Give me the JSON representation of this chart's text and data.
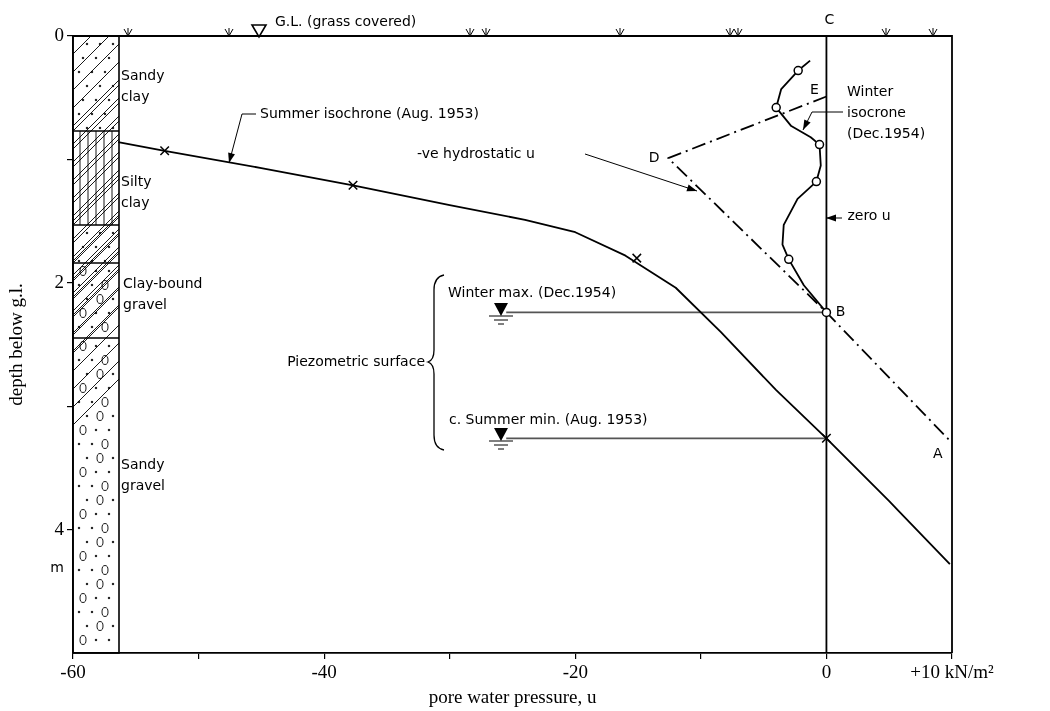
{
  "chart_data": {
    "type": "line",
    "xlabel": "pore water pressure, u",
    "ylabel": "depth below g.l.",
    "xlim": [
      -60,
      10
    ],
    "ylim": [
      5,
      0
    ],
    "xticks": [
      -60,
      {
        "value": -50,
        "label": null
      },
      -40,
      {
        "value": -30,
        "label": null
      },
      -20,
      {
        "value": -10,
        "label": null
      },
      0,
      {
        "value": 10,
        "label": "+10 kN/m²"
      }
    ],
    "yticks": [
      0,
      {
        "value": 1,
        "label": null
      },
      2,
      {
        "value": 3,
        "label": null
      },
      4
    ],
    "series": [
      {
        "name": "Summer isochrone (Aug. 1953)",
        "color": "#000000",
        "x": [
          -56.4,
          -52.7,
          -45,
          -37.7,
          -30,
          -24,
          -20,
          -16,
          -12,
          -8.4,
          -4,
          0,
          5,
          9.83
        ],
        "values": [
          0.86,
          0.93,
          1.07,
          1.21,
          1.37,
          1.49,
          1.59,
          1.78,
          2.04,
          2.4,
          2.87,
          3.26,
          3.77,
          4.28
        ]
      },
      {
        "type": "scatter",
        "marker": "cross",
        "color": "#000000",
        "x": [
          -52.7,
          -37.7,
          -15.1,
          0
        ],
        "values": [
          0.93,
          1.21,
          1.8,
          3.26
        ]
      },
      {
        "name": "Winter isocrone (Dec.1954)",
        "color": "#000000",
        "x": [
          -1.3,
          -2.25,
          -3.6,
          -4.0,
          -2.8,
          -1.25,
          -0.55,
          -0.45,
          -0.8,
          -2.3,
          -3.4,
          -3.5,
          -3.0,
          -1.8,
          0
        ],
        "values": [
          0.2,
          0.28,
          0.43,
          0.58,
          0.73,
          0.82,
          0.88,
          1.05,
          1.18,
          1.32,
          1.53,
          1.69,
          1.81,
          2.02,
          2.24
        ]
      },
      {
        "type": "scatter",
        "marker": "circle",
        "color": "#000000",
        "x": [
          -2.25,
          -4.0,
          -0.55,
          -0.8,
          -3.0,
          0
        ],
        "values": [
          0.28,
          0.58,
          0.88,
          1.18,
          1.81,
          2.24
        ]
      },
      {
        "line_style": "dashed",
        "color": "#000000",
        "x": [
          0,
          -12.6,
          0,
          9.83
        ],
        "values": [
          0.49,
          0.99,
          2.24,
          3.28
        ]
      },
      {
        "name": "Winter max. (Dec.1954)",
        "color": "#555555",
        "x": [
          -25.5,
          0
        ],
        "values": [
          2.24,
          2.24
        ]
      },
      {
        "name": "c. Summer min. (Aug. 1953)",
        "color": "#555555",
        "x": [
          -25.5,
          0
        ],
        "values": [
          3.26,
          3.26
        ]
      }
    ],
    "ref_lines": [
      {
        "axis": "x",
        "value": 0,
        "label": "zero u",
        "color": "#000000"
      }
    ],
    "annotations": [
      "G.L. (grass covered)",
      "Sandy clay",
      "Silty clay",
      "Clay-bound gravel",
      "Sandy gravel",
      "Piezometric surface",
      "m",
      "-ve hydrostatic u",
      {
        "text": "A",
        "x": 9.83,
        "y": 3.28
      },
      {
        "text": "B",
        "x": 0,
        "y": 2.24
      },
      {
        "text": "C",
        "x": 0,
        "y": 0
      },
      {
        "text": "D",
        "x": -12.6,
        "y": 0.99
      },
      {
        "text": "E",
        "x": 0,
        "y": 0.49
      }
    ]
  }
}
